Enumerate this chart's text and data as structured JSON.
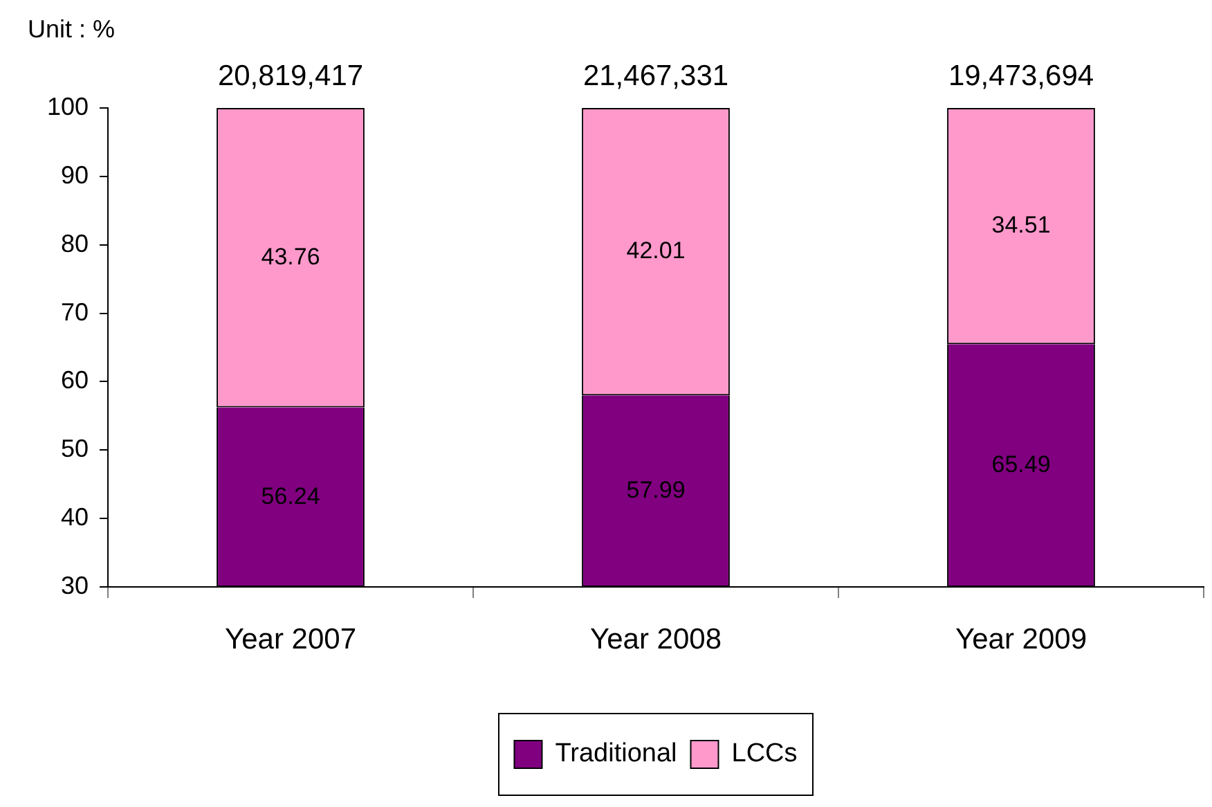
{
  "chart_data": {
    "type": "bar",
    "ylabel": "Unit : %",
    "categories": [
      "Year 2007",
      "Year 2008",
      "Year 2009"
    ],
    "series": [
      {
        "name": "Traditional",
        "color": "#800080",
        "values": [
          56.24,
          57.99,
          65.49
        ]
      },
      {
        "name": "LCCs",
        "color": "#ff99cc",
        "values": [
          43.76,
          42.01,
          34.51
        ]
      }
    ],
    "stacked": true,
    "ylim": [
      30,
      100
    ],
    "yticks": [
      30,
      40,
      50,
      60,
      70,
      80,
      90,
      100
    ],
    "data_labels": true,
    "annotations": [
      {
        "text": "20,819,417",
        "x": "Year 2007",
        "y": 100
      },
      {
        "text": "21,467,331",
        "x": "Year 2008",
        "y": 100
      },
      {
        "text": "19,473,694",
        "x": "Year 2009",
        "y": 100
      }
    ],
    "legend": "bottom"
  }
}
